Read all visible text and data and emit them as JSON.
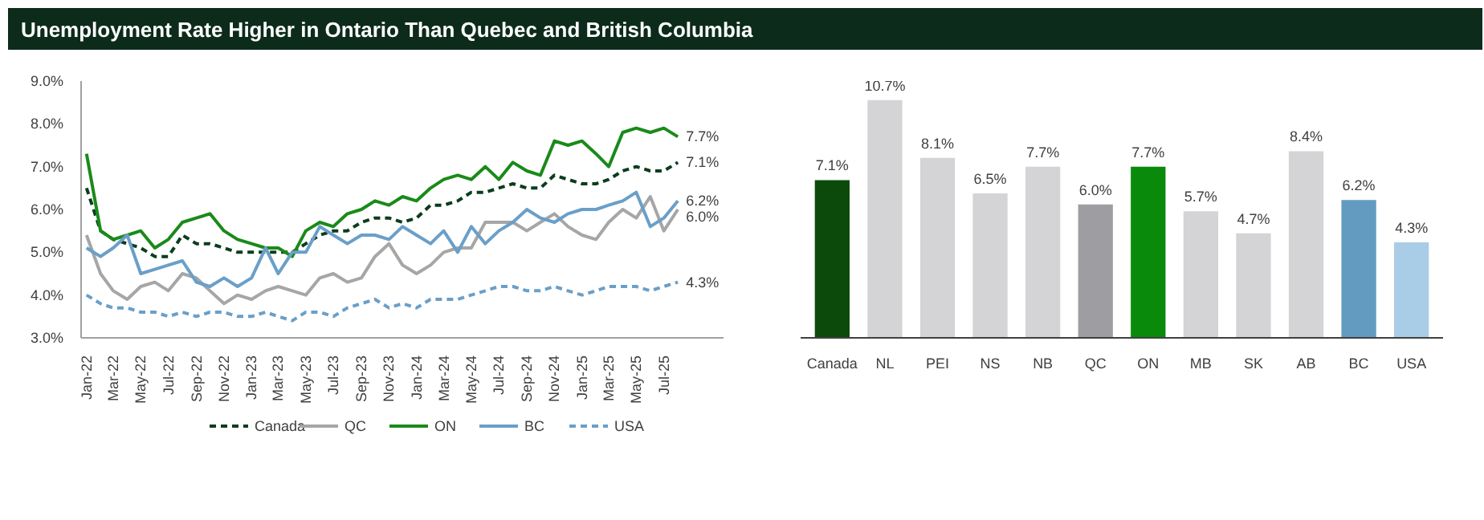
{
  "chart_data": [
    {
      "type": "line",
      "title": "Unemployment Rate Higher in Ontario Than Quebec and British Columbia",
      "x": [
        "2022-01",
        "2022-02",
        "2022-03",
        "2022-04",
        "2022-05",
        "2022-06",
        "2022-07",
        "2022-08",
        "2022-09",
        "2022-10",
        "2022-11",
        "2022-12",
        "2023-01",
        "2023-02",
        "2023-03",
        "2023-04",
        "2023-05",
        "2023-06",
        "2023-07",
        "2023-08",
        "2023-09",
        "2023-10",
        "2023-11",
        "2023-12",
        "2024-01",
        "2024-02",
        "2024-03",
        "2024-04",
        "2024-05",
        "2024-06",
        "2024-07",
        "2024-08",
        "2024-09",
        "2024-10",
        "2024-11",
        "2024-12",
        "2025-01",
        "2025-02",
        "2025-03",
        "2025-04",
        "2025-05",
        "2025-06",
        "2025-07",
        "2025-08"
      ],
      "series": [
        {
          "name": "Canada",
          "color": "#0b3d1c",
          "line_style": "dashed",
          "values": [
            6.5,
            5.5,
            5.3,
            5.2,
            5.1,
            4.9,
            4.9,
            5.4,
            5.2,
            5.2,
            5.1,
            5.0,
            5.0,
            5.0,
            5.0,
            5.0,
            5.2,
            5.4,
            5.5,
            5.5,
            5.7,
            5.8,
            5.8,
            5.7,
            5.8,
            6.1,
            6.1,
            6.2,
            6.4,
            6.4,
            6.5,
            6.6,
            6.5,
            6.5,
            6.8,
            6.7,
            6.6,
            6.6,
            6.7,
            6.9,
            7.0,
            6.9,
            6.9,
            7.1
          ],
          "value_labels": [
            null,
            null,
            null,
            null,
            null,
            null,
            null,
            null,
            null,
            null,
            null,
            null,
            null,
            null,
            null,
            null,
            null,
            null,
            null,
            null,
            null,
            null,
            null,
            null,
            null,
            null,
            null,
            null,
            null,
            null,
            null,
            null,
            null,
            null,
            null,
            null,
            null,
            null,
            null,
            null,
            null,
            null,
            null,
            "7.1%"
          ]
        },
        {
          "name": "QC",
          "color": "#a6a6a6",
          "line_style": "solid",
          "values": [
            5.4,
            4.5,
            4.1,
            3.9,
            4.2,
            4.3,
            4.1,
            4.5,
            4.4,
            4.1,
            3.8,
            4.0,
            3.9,
            4.1,
            4.2,
            4.1,
            4.0,
            4.4,
            4.5,
            4.3,
            4.4,
            4.9,
            5.2,
            4.7,
            4.5,
            4.7,
            5.0,
            5.1,
            5.1,
            5.7,
            5.7,
            5.7,
            5.5,
            5.7,
            5.9,
            5.6,
            5.4,
            5.3,
            5.7,
            6.0,
            5.8,
            6.3,
            5.5,
            6.0
          ],
          "value_labels": [
            null,
            null,
            null,
            null,
            null,
            null,
            null,
            null,
            null,
            null,
            null,
            null,
            null,
            null,
            null,
            null,
            null,
            null,
            null,
            null,
            null,
            null,
            null,
            null,
            null,
            null,
            null,
            null,
            null,
            null,
            null,
            null,
            null,
            null,
            null,
            null,
            null,
            null,
            null,
            null,
            null,
            null,
            null,
            "6.0%"
          ]
        },
        {
          "name": "ON",
          "color": "#1a8a1a",
          "line_style": "solid",
          "values": [
            7.3,
            5.5,
            5.3,
            5.4,
            5.5,
            5.1,
            5.3,
            5.7,
            5.8,
            5.9,
            5.5,
            5.3,
            5.2,
            5.1,
            5.1,
            4.9,
            5.5,
            5.7,
            5.6,
            5.9,
            6.0,
            6.2,
            6.1,
            6.3,
            6.2,
            6.5,
            6.7,
            6.8,
            6.7,
            7.0,
            6.7,
            7.1,
            6.9,
            6.8,
            7.6,
            7.5,
            7.6,
            7.3,
            7.0,
            7.8,
            7.9,
            7.8,
            7.9,
            7.7
          ],
          "value_labels": [
            null,
            null,
            null,
            null,
            null,
            null,
            null,
            null,
            null,
            null,
            null,
            null,
            null,
            null,
            null,
            null,
            null,
            null,
            null,
            null,
            null,
            null,
            null,
            null,
            null,
            null,
            null,
            null,
            null,
            null,
            null,
            null,
            null,
            null,
            null,
            null,
            null,
            null,
            null,
            null,
            null,
            null,
            null,
            "7.7%"
          ]
        },
        {
          "name": "BC",
          "color": "#6a9fc8",
          "line_style": "solid",
          "values": [
            5.1,
            4.9,
            5.1,
            5.4,
            4.5,
            4.6,
            4.7,
            4.8,
            4.3,
            4.2,
            4.4,
            4.2,
            4.4,
            5.1,
            4.5,
            5.0,
            5.0,
            5.6,
            5.4,
            5.2,
            5.4,
            5.4,
            5.3,
            5.6,
            5.4,
            5.2,
            5.5,
            5.0,
            5.6,
            5.2,
            5.5,
            5.7,
            6.0,
            5.8,
            5.7,
            5.9,
            6.0,
            6.0,
            6.1,
            6.2,
            6.4,
            5.6,
            5.8,
            6.2
          ],
          "value_labels": [
            null,
            null,
            null,
            null,
            null,
            null,
            null,
            null,
            null,
            null,
            null,
            null,
            null,
            null,
            null,
            null,
            null,
            null,
            null,
            null,
            null,
            null,
            null,
            null,
            null,
            null,
            null,
            null,
            null,
            null,
            null,
            null,
            null,
            null,
            null,
            null,
            null,
            null,
            null,
            null,
            null,
            null,
            null,
            "6.2%"
          ]
        },
        {
          "name": "USA",
          "color": "#6a9fc8",
          "line_style": "dashed",
          "values": [
            4.0,
            3.8,
            3.7,
            3.7,
            3.6,
            3.6,
            3.5,
            3.6,
            3.5,
            3.6,
            3.6,
            3.5,
            3.5,
            3.6,
            3.5,
            3.4,
            3.6,
            3.6,
            3.5,
            3.7,
            3.8,
            3.9,
            3.7,
            3.8,
            3.7,
            3.9,
            3.9,
            3.9,
            4.0,
            4.1,
            4.2,
            4.2,
            4.1,
            4.1,
            4.2,
            4.1,
            4.0,
            4.1,
            4.2,
            4.2,
            4.2,
            4.1,
            4.2,
            4.3
          ],
          "value_labels": [
            null,
            null,
            null,
            null,
            null,
            null,
            null,
            null,
            null,
            null,
            null,
            null,
            null,
            null,
            null,
            null,
            null,
            null,
            null,
            null,
            null,
            null,
            null,
            null,
            null,
            null,
            null,
            null,
            null,
            null,
            null,
            null,
            null,
            null,
            null,
            null,
            null,
            null,
            null,
            null,
            null,
            null,
            null,
            "4.3%"
          ]
        }
      ],
      "xlim": [
        "2021-12-20",
        "2025-11-10"
      ],
      "xticks": [
        {
          "value": "2022-01",
          "label": "Jan-22"
        },
        {
          "value": "2022-03",
          "label": "Mar-22"
        },
        {
          "value": "2022-05",
          "label": "May-22"
        },
        {
          "value": "2022-07",
          "label": "Jul-22"
        },
        {
          "value": "2022-09",
          "label": "Sep-22"
        },
        {
          "value": "2022-11",
          "label": "Nov-22"
        },
        {
          "value": "2023-01",
          "label": "Jan-23"
        },
        {
          "value": "2023-03",
          "label": "Mar-23"
        },
        {
          "value": "2023-05",
          "label": "May-23"
        },
        {
          "value": "2023-07",
          "label": "Jul-23"
        },
        {
          "value": "2023-09",
          "label": "Sep-23"
        },
        {
          "value": "2023-11",
          "label": "Nov-23"
        },
        {
          "value": "2024-01",
          "label": "Jan-24"
        },
        {
          "value": "2024-03",
          "label": "Mar-24"
        },
        {
          "value": "2024-05",
          "label": "May-24"
        },
        {
          "value": "2024-07",
          "label": "Jul-24"
        },
        {
          "value": "2024-09",
          "label": "Sep-24"
        },
        {
          "value": "2024-11",
          "label": "Nov-24"
        },
        {
          "value": "2025-01",
          "label": "Jan-25"
        },
        {
          "value": "2025-03",
          "label": "Mar-25"
        },
        {
          "value": "2025-05",
          "label": "May-25"
        },
        {
          "value": "2025-07",
          "label": "Jul-25"
        }
      ],
      "ylim": [
        3,
        9
      ],
      "yticks": [
        {
          "value": 3,
          "label": "3.0%"
        },
        {
          "value": 4,
          "label": "4.0%"
        },
        {
          "value": 5,
          "label": "5.0%"
        },
        {
          "value": 6,
          "label": "6.0%"
        },
        {
          "value": 7,
          "label": "7.0%"
        },
        {
          "value": 8,
          "label": "8.0%"
        },
        {
          "value": 9,
          "label": "9.0%"
        }
      ],
      "grid": false,
      "legend": "bottom",
      "marker": "none"
    },
    {
      "type": "bar",
      "categories": [
        "Canada",
        "NL",
        "PEI",
        "NS",
        "NB",
        "QC",
        "ON",
        "MB",
        "SK",
        "AB",
        "BC",
        "USA"
      ],
      "values": [
        7.1,
        10.7,
        8.1,
        6.5,
        7.7,
        6.0,
        7.7,
        5.7,
        4.7,
        8.4,
        6.2,
        4.3
      ],
      "colors": [
        "#0b4a0b",
        "#d4d4d6",
        "#d4d4d6",
        "#d4d4d6",
        "#d4d4d6",
        "#9e9da2",
        "#0a8a0a",
        "#d4d4d6",
        "#d4d4d6",
        "#d4d4d6",
        "#629bbf",
        "#a9cde6"
      ],
      "value_labels": [
        "7.1%",
        "10.7%",
        "8.1%",
        "6.5%",
        "7.7%",
        "6.0%",
        "7.7%",
        "5.7%",
        "4.7%",
        "8.4%",
        "6.2%",
        "4.3%"
      ],
      "tick_labels": "x",
      "grid": false
    }
  ]
}
